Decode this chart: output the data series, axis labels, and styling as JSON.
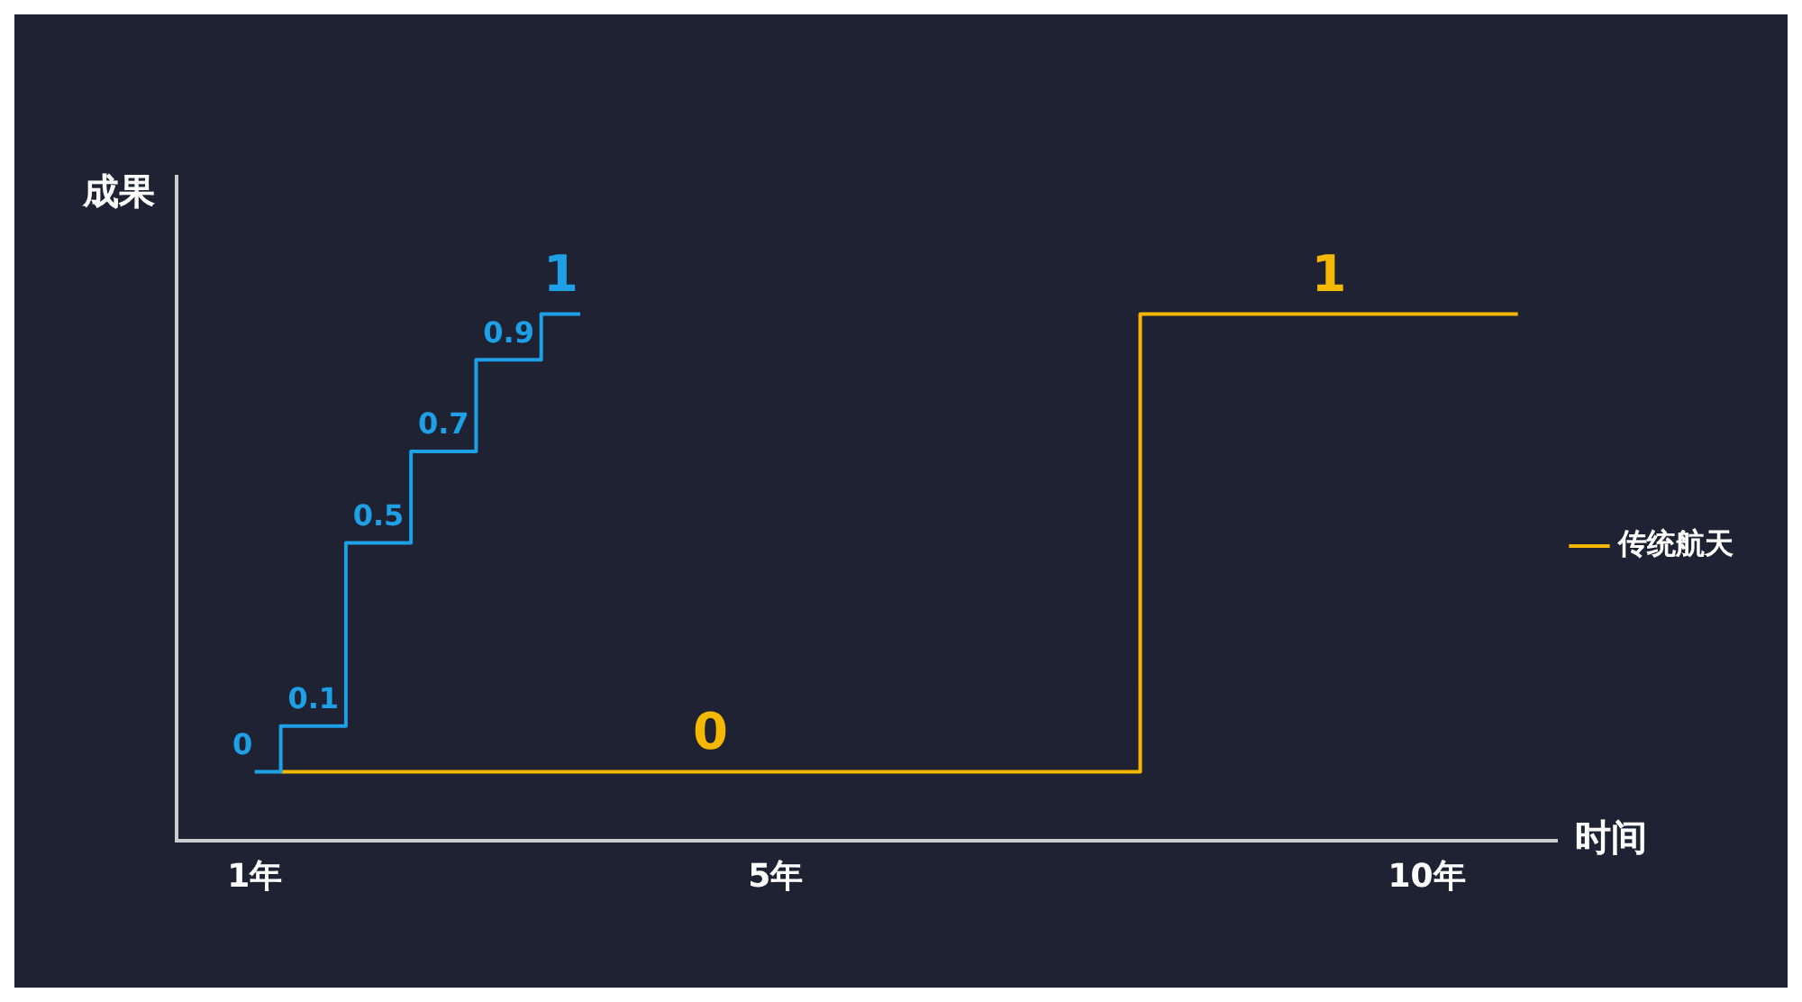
{
  "chart_data": {
    "type": "step",
    "xlabel": "时间",
    "ylabel": "成果",
    "xlim": [
      0.4,
      11
    ],
    "xticks": [
      {
        "value": 1,
        "label": "1年"
      },
      {
        "value": 5,
        "label": "5年"
      },
      {
        "value": 10,
        "label": "10年"
      }
    ],
    "ylim": [
      -0.15,
      1.3
    ],
    "tick_labels": "x",
    "grid": false,
    "legend": "right",
    "series": [
      {
        "color": "#1ea0e6",
        "x": [
          1,
          1.2,
          1.7,
          2.2,
          2.7,
          3.2,
          3.5
        ],
        "values": [
          0,
          0.1,
          0.5,
          0.7,
          0.9,
          1,
          1
        ],
        "value_labels": [
          "0",
          "0.1",
          "0.5",
          "0.7",
          "0.9",
          "1",
          null
        ]
      },
      {
        "name": "传统航天",
        "color": "#f5b800",
        "x": [
          1.2,
          4.5,
          7.8,
          9.25,
          10.7
        ],
        "values": [
          0,
          0,
          1,
          1,
          1
        ],
        "value_labels": [
          null,
          "0",
          null,
          "1",
          null
        ]
      }
    ]
  }
}
